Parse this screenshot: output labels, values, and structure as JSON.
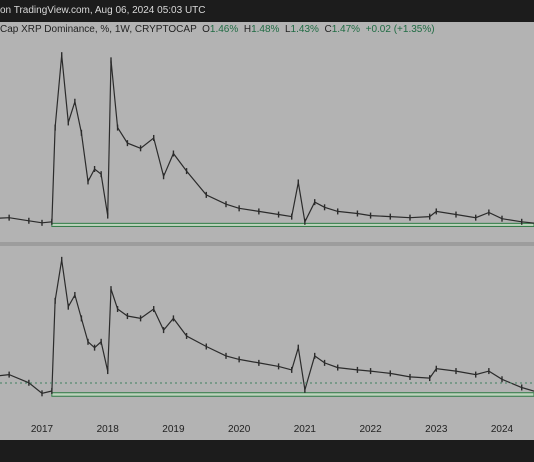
{
  "header": {
    "text": "on TradingView.com, Aug 06, 2024 05:03 UTC"
  },
  "legend": {
    "symbol": "Cap XRP Dominance, %, 1W, CRYPTOCAP",
    "open_label": "O",
    "open_value": "1.46%",
    "high_label": "H",
    "high_value": "1.48%",
    "low_label": "L",
    "low_value": "1.43%",
    "close_label": "C",
    "close_value": "1.47%",
    "change_value": "+0.02 (+1.35%)"
  },
  "colors": {
    "background": "#b3b3b3",
    "bars": "#2b2b2b",
    "support_fill": "#bdd3bd",
    "support_border": "#2f7a45",
    "title_bar": "#1c1c1c",
    "dotted_line": "#3f7f5f"
  },
  "chart_data": [
    {
      "type": "line",
      "title": "",
      "x_ticks": [
        "2017",
        "2018",
        "2019",
        "2020",
        "2021",
        "2022",
        "2023",
        "2024"
      ],
      "x": [
        2016.2,
        2016.5,
        2016.8,
        2017.0,
        2017.15,
        2017.2,
        2017.3,
        2017.4,
        2017.5,
        2017.6,
        2017.7,
        2017.8,
        2017.9,
        2018.0,
        2018.05,
        2018.15,
        2018.3,
        2018.5,
        2018.7,
        2018.85,
        2019.0,
        2019.2,
        2019.5,
        2019.8,
        2020.0,
        2020.3,
        2020.6,
        2020.8,
        2020.9,
        2021.0,
        2021.15,
        2021.3,
        2021.5,
        2021.8,
        2022.0,
        2022.3,
        2022.6,
        2022.9,
        2023.0,
        2023.3,
        2023.6,
        2023.8,
        2024.0,
        2024.3,
        2024.6
      ],
      "values": [
        5.2,
        5.3,
        5.0,
        4.8,
        4.9,
        14.0,
        21.0,
        14.5,
        16.5,
        13.5,
        8.8,
        10.0,
        9.5,
        5.5,
        20.5,
        14.0,
        12.5,
        12.0,
        13.0,
        9.3,
        11.5,
        9.8,
        7.5,
        6.6,
        6.2,
        5.9,
        5.6,
        5.4,
        8.7,
        4.9,
        6.8,
        6.3,
        5.9,
        5.7,
        5.5,
        5.4,
        5.3,
        5.4,
        5.9,
        5.6,
        5.3,
        5.8,
        5.2,
        4.9,
        4.7
      ],
      "support_band": [
        4.45,
        4.75
      ],
      "ylim": [
        4.3,
        21.5
      ],
      "grid": false
    },
    {
      "type": "line",
      "title": "",
      "x_ticks": [
        "2017",
        "2018",
        "2019",
        "2020",
        "2021",
        "2022",
        "2023",
        "2024"
      ],
      "x": [
        2016.2,
        2016.5,
        2016.8,
        2017.0,
        2017.15,
        2017.2,
        2017.3,
        2017.4,
        2017.5,
        2017.6,
        2017.7,
        2017.8,
        2017.9,
        2018.0,
        2018.05,
        2018.15,
        2018.3,
        2018.5,
        2018.7,
        2018.85,
        2019.0,
        2019.2,
        2019.5,
        2019.8,
        2020.0,
        2020.3,
        2020.6,
        2020.8,
        2020.9,
        2021.0,
        2021.15,
        2021.3,
        2021.5,
        2021.8,
        2022.0,
        2022.3,
        2022.6,
        2022.9,
        2023.0,
        2023.3,
        2023.6,
        2023.8,
        2024.0,
        2024.3,
        2024.6
      ],
      "values": [
        6.0,
        6.2,
        5.5,
        4.6,
        4.8,
        12.5,
        16.0,
        12.0,
        13.0,
        11.0,
        9.0,
        8.5,
        9.0,
        6.5,
        13.5,
        11.8,
        11.2,
        11.0,
        11.8,
        10.0,
        11.0,
        9.5,
        8.6,
        7.8,
        7.5,
        7.2,
        6.9,
        6.6,
        8.5,
        4.9,
        7.8,
        7.2,
        6.8,
        6.6,
        6.5,
        6.3,
        6.0,
        5.9,
        6.7,
        6.5,
        6.2,
        6.5,
        5.8,
        5.1,
        4.6
      ],
      "support_band": [
        4.35,
        4.65
      ],
      "ylim": [
        4.2,
        16.5
      ],
      "grid": false
    }
  ]
}
